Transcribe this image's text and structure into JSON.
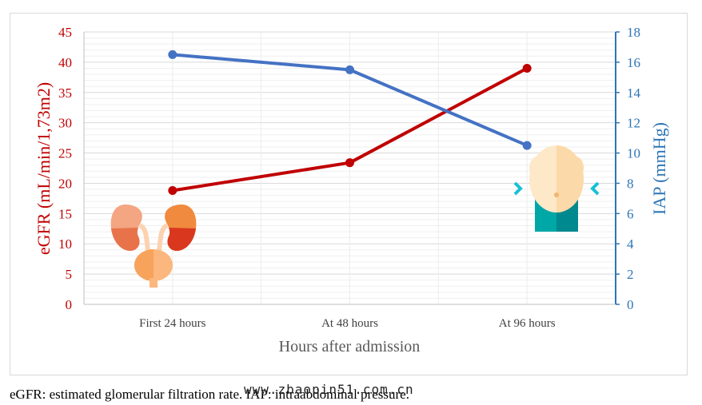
{
  "chart_data": {
    "type": "line",
    "categories": [
      "First 24 hours",
      "At 48 hours",
      "At 96 hours"
    ],
    "series": [
      {
        "name": "eGFR",
        "axis": "left",
        "color": "#c00000",
        "values": [
          18.8,
          23.4,
          39.0
        ]
      },
      {
        "name": "IAP",
        "axis": "right",
        "color": "#4472c4",
        "values": [
          16.5,
          15.5,
          10.5
        ]
      }
    ],
    "xlabel": "Hours after admission",
    "ylabel_left": "eGFR (mL/min/1,73m2)",
    "ylabel_right": "IAP (mmHg)",
    "ylim_left": [
      0,
      45
    ],
    "yticks_left": [
      "0",
      "5",
      "10",
      "15",
      "20",
      "25",
      "30",
      "35",
      "40",
      "45"
    ],
    "ylim_right": [
      0,
      18
    ],
    "yticks_right": [
      "0",
      "2",
      "4",
      "6",
      "8",
      "10",
      "12",
      "14",
      "16",
      "18"
    ],
    "left_axis_color": "#c00000",
    "right_axis_color": "#2e75b6",
    "grid": true,
    "icons": [
      "kidneys-icon",
      "abdomen-icon"
    ]
  },
  "caption": "eGFR: estimated glomerular filtration rate. IAP: intraabdominal pressure.",
  "watermark": "www.zbaopin51.com.cn"
}
